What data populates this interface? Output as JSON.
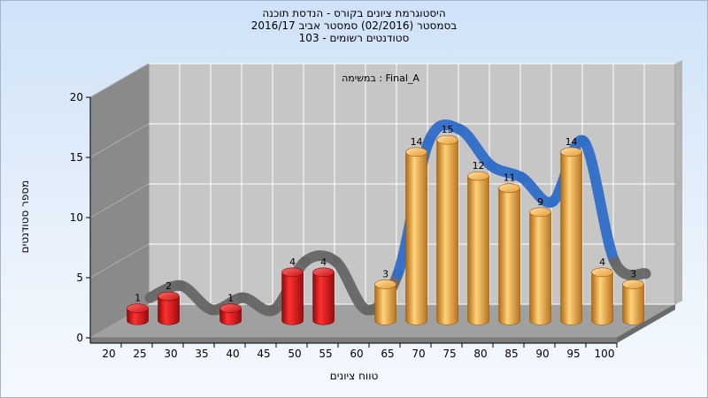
{
  "chart_data": {
    "type": "bar",
    "title": "היסטוגרמת ציונים בקורס - הנדסת תוכנה",
    "subtitle_lines": [
      "בסמסטר  (02/2016)  סמסטר אביב 2016/17",
      "סטודנטים רשומים - 103"
    ],
    "annotation": "במשימה : Final_A",
    "xlabel": "טווח ציונים",
    "ylabel": "מספר סטודנטים",
    "categories": [
      "20",
      "25",
      "30",
      "35",
      "40",
      "45",
      "50",
      "55",
      "60",
      "65",
      "70",
      "75",
      "80",
      "85",
      "90",
      "95",
      "100"
    ],
    "values": [
      1,
      2,
      0,
      1,
      0,
      4,
      4,
      0,
      3,
      14,
      15,
      12,
      11,
      9,
      14,
      4,
      3
    ],
    "bar_colors": [
      "red",
      "red",
      "red",
      "red",
      "red",
      "red",
      "red",
      "red",
      "orange",
      "orange",
      "orange",
      "orange",
      "orange",
      "orange",
      "orange",
      "orange",
      "orange"
    ],
    "colors": {
      "red": "#e01818",
      "orange": "#f0a93c",
      "trend_low": "#666666",
      "trend_high": "#2f6ec8"
    },
    "trend_line": true,
    "ylim": [
      0,
      20
    ],
    "yticks": [
      0,
      5,
      10,
      15,
      20
    ],
    "grid": true
  }
}
